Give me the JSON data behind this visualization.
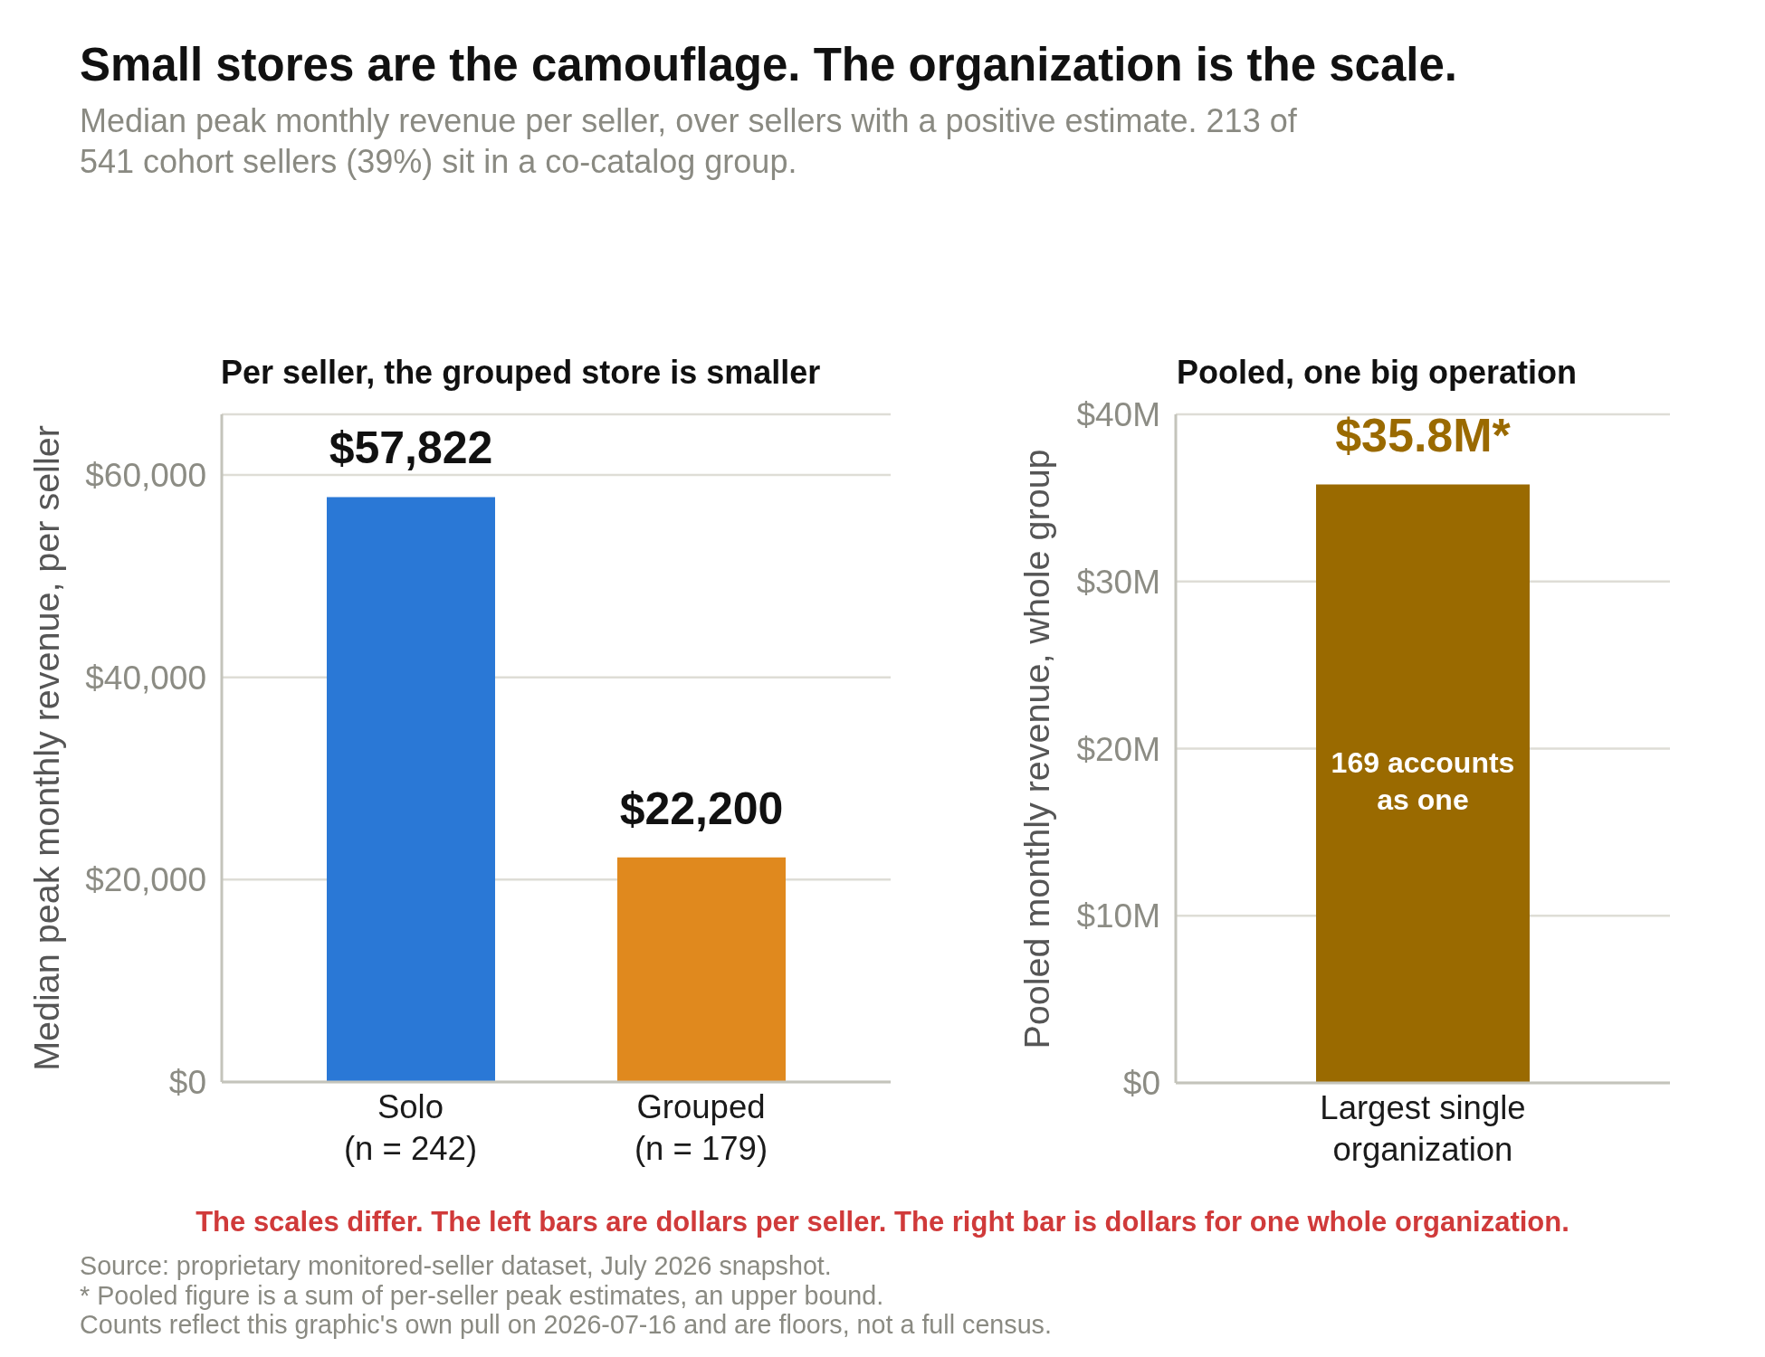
{
  "chart_data": [
    {
      "type": "other",
      "title": "Small stores are the camouflage. The organization is the scale.",
      "subtitle": "Median peak monthly revenue per seller, over sellers with a positive estimate. 213 of 541 cohort sellers (39%) sit in a co-catalog group."
    },
    {
      "type": "bar",
      "title": "Per seller, the grouped store is smaller",
      "ylabel": "Median peak monthly revenue, per seller",
      "categories": [
        "Solo\n(n = 242)",
        "Grouped\n(n = 179)"
      ],
      "values": [
        57822,
        22200
      ],
      "colors": [
        "#2a78d6",
        "#e0891e"
      ],
      "value_labels": [
        "$57,822",
        "$22,200"
      ],
      "ylim": [
        0,
        66000
      ],
      "yticks": [
        {
          "value": 0,
          "label": "$0"
        },
        {
          "value": 20000,
          "label": "$20,000"
        },
        {
          "value": 40000,
          "label": "$40,000"
        },
        {
          "value": 60000,
          "label": "$60,000"
        }
      ],
      "grid": "y"
    },
    {
      "type": "bar",
      "title": "Pooled, one big operation",
      "ylabel": "Pooled monthly revenue, whole group",
      "categories": [
        "Largest single\norganization"
      ],
      "values": [
        35.8
      ],
      "color": "#9a6a00",
      "value_labels": [
        "$35.8M*"
      ],
      "ylim": [
        0,
        40
      ],
      "yticks": [
        {
          "value": 0,
          "label": "$0"
        },
        {
          "value": 10,
          "label": "$10M"
        },
        {
          "value": 20,
          "label": "$20M"
        },
        {
          "value": 30,
          "label": "$30M"
        },
        {
          "value": 40,
          "label": "$40M"
        }
      ],
      "grid": "y",
      "annotations": [
        "169 accounts as one"
      ]
    },
    {
      "type": "other",
      "annotations": [
        "The scales differ. The left bars are dollars per seller. The right bar is dollars for one whole organization.",
        "Source: proprietary monitored-seller dataset, July 2026 snapshot.",
        "* Pooled figure is a sum of per-seller peak estimates, an upper bound.",
        "Counts reflect this graphic's own pull on 2026-07-16 and are floors, not a full census."
      ]
    }
  ]
}
